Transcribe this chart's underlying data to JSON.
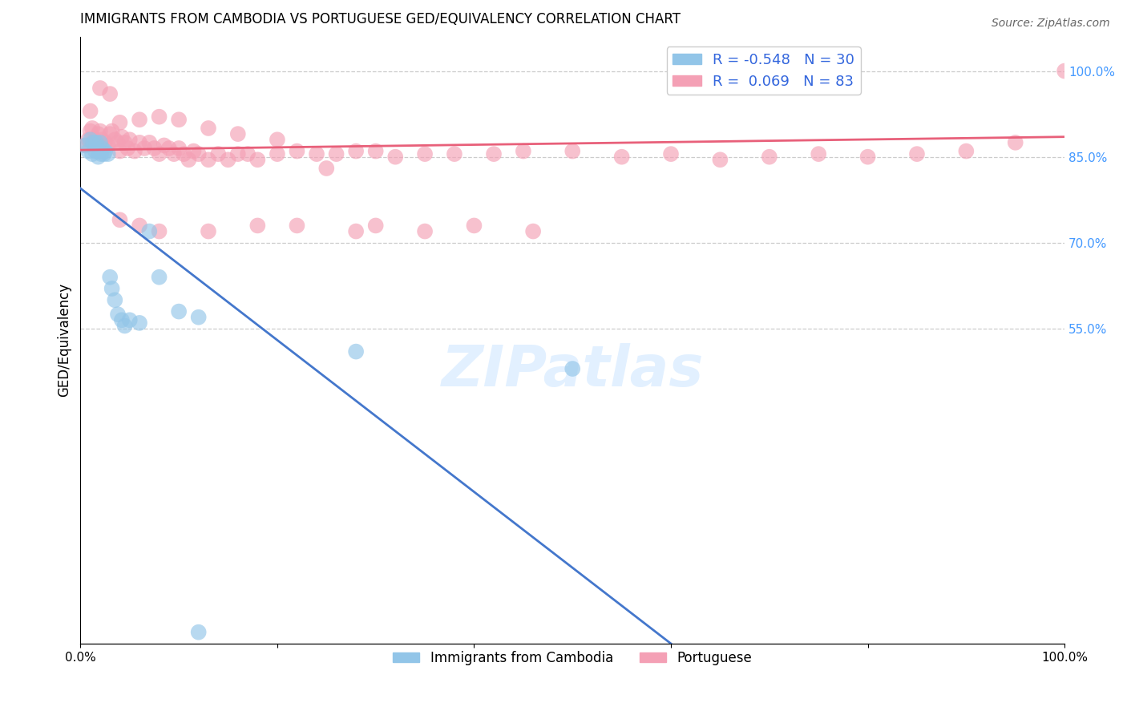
{
  "title": "IMMIGRANTS FROM CAMBODIA VS PORTUGUESE GED/EQUIVALENCY CORRELATION CHART",
  "source": "Source: ZipAtlas.com",
  "ylabel": "GED/Equivalency",
  "ytick_labels": [
    "100.0%",
    "85.0%",
    "70.0%",
    "55.0%"
  ],
  "ytick_values": [
    1.0,
    0.85,
    0.7,
    0.55
  ],
  "xlim": [
    0.0,
    1.0
  ],
  "ylim": [
    0.0,
    1.06
  ],
  "legend_r1": "R = -0.548",
  "legend_n1": "N = 30",
  "legend_r2": "R =  0.069",
  "legend_n2": "N = 83",
  "color_blue": "#92c5e8",
  "color_pink": "#f4a0b5",
  "color_blue_line": "#4477cc",
  "color_pink_line": "#e8607a",
  "background_color": "#ffffff",
  "grid_color": "#cccccc",
  "blue_scatter_x": [
    0.005,
    0.008,
    0.01,
    0.012,
    0.013,
    0.015,
    0.016,
    0.018,
    0.019,
    0.02,
    0.021,
    0.022,
    0.024,
    0.025,
    0.028,
    0.03,
    0.032,
    0.035,
    0.038,
    0.042,
    0.045,
    0.05,
    0.06,
    0.07,
    0.08,
    0.1,
    0.12,
    0.28,
    0.5,
    0.12
  ],
  "blue_scatter_y": [
    0.87,
    0.86,
    0.88,
    0.855,
    0.875,
    0.86,
    0.875,
    0.85,
    0.86,
    0.875,
    0.855,
    0.865,
    0.855,
    0.86,
    0.855,
    0.64,
    0.62,
    0.6,
    0.575,
    0.565,
    0.555,
    0.565,
    0.56,
    0.72,
    0.64,
    0.58,
    0.57,
    0.51,
    0.48,
    0.02
  ],
  "pink_scatter_x": [
    0.005,
    0.008,
    0.01,
    0.012,
    0.015,
    0.018,
    0.02,
    0.022,
    0.025,
    0.028,
    0.03,
    0.032,
    0.035,
    0.038,
    0.04,
    0.042,
    0.045,
    0.048,
    0.05,
    0.055,
    0.06,
    0.065,
    0.07,
    0.075,
    0.08,
    0.085,
    0.09,
    0.095,
    0.1,
    0.105,
    0.11,
    0.115,
    0.12,
    0.13,
    0.14,
    0.15,
    0.16,
    0.17,
    0.18,
    0.2,
    0.22,
    0.24,
    0.26,
    0.28,
    0.3,
    0.32,
    0.35,
    0.38,
    0.42,
    0.45,
    0.5,
    0.55,
    0.6,
    0.65,
    0.7,
    0.75,
    0.8,
    0.85,
    0.9,
    0.95,
    1.0,
    0.01,
    0.02,
    0.03,
    0.04,
    0.06,
    0.08,
    0.1,
    0.13,
    0.16,
    0.2,
    0.25,
    0.3,
    0.04,
    0.06,
    0.08,
    0.13,
    0.18,
    0.22,
    0.28,
    0.35,
    0.4,
    0.46
  ],
  "pink_scatter_y": [
    0.87,
    0.88,
    0.895,
    0.9,
    0.88,
    0.89,
    0.895,
    0.88,
    0.875,
    0.87,
    0.89,
    0.895,
    0.88,
    0.875,
    0.86,
    0.885,
    0.875,
    0.865,
    0.88,
    0.86,
    0.875,
    0.865,
    0.875,
    0.865,
    0.855,
    0.87,
    0.865,
    0.855,
    0.865,
    0.855,
    0.845,
    0.86,
    0.855,
    0.845,
    0.855,
    0.845,
    0.855,
    0.855,
    0.845,
    0.855,
    0.86,
    0.855,
    0.855,
    0.86,
    0.86,
    0.85,
    0.855,
    0.855,
    0.855,
    0.86,
    0.86,
    0.85,
    0.855,
    0.845,
    0.85,
    0.855,
    0.85,
    0.855,
    0.86,
    0.875,
    1.0,
    0.93,
    0.97,
    0.96,
    0.91,
    0.915,
    0.92,
    0.915,
    0.9,
    0.89,
    0.88,
    0.83,
    0.73,
    0.74,
    0.73,
    0.72,
    0.72,
    0.73,
    0.73,
    0.72,
    0.72,
    0.73,
    0.72
  ],
  "blue_line_x": [
    0.0,
    0.6
  ],
  "blue_line_y": [
    0.795,
    0.0
  ],
  "pink_line_x": [
    0.0,
    1.0
  ],
  "pink_line_y": [
    0.862,
    0.885
  ]
}
